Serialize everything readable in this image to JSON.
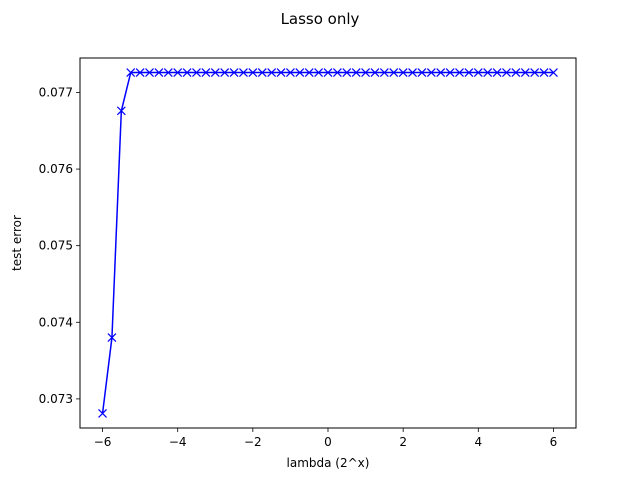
{
  "chart_data": {
    "type": "line",
    "title": "Lasso only",
    "xlabel": "lambda (2^x)",
    "ylabel": "test error",
    "xlim": [
      -6.6,
      6.6
    ],
    "ylim": [
      0.07262,
      0.07745
    ],
    "x_ticks": [
      -6,
      -4,
      -2,
      0,
      2,
      4,
      6
    ],
    "x_tick_labels": [
      "−6",
      "−4",
      "−2",
      "0",
      "2",
      "4",
      "6"
    ],
    "y_ticks": [
      0.073,
      0.074,
      0.075,
      0.076,
      0.077
    ],
    "y_tick_labels": [
      "0.073",
      "0.074",
      "0.075",
      "0.076",
      "0.077"
    ],
    "grid": false,
    "marker": "x",
    "series": [
      {
        "color": "#0000ff",
        "x": [
          -6,
          -5.75,
          -5.5,
          -5.25,
          -5,
          -4.75,
          -4.5,
          -4.25,
          -4,
          -3.75,
          -3.5,
          -3.25,
          -3,
          -2.75,
          -2.5,
          -2.25,
          -2,
          -1.75,
          -1.5,
          -1.25,
          -1,
          -0.75,
          -0.5,
          -0.25,
          0,
          0.25,
          0.5,
          0.75,
          1,
          1.25,
          1.5,
          1.75,
          2,
          2.25,
          2.5,
          2.75,
          3,
          3.25,
          3.5,
          3.75,
          4,
          4.25,
          4.5,
          4.75,
          5,
          5.25,
          5.5,
          5.75,
          6
        ],
        "y": [
          0.07281,
          0.0738,
          0.07676,
          0.07726,
          0.07726,
          0.07726,
          0.07726,
          0.07726,
          0.07726,
          0.07726,
          0.07726,
          0.07726,
          0.07726,
          0.07726,
          0.07726,
          0.07726,
          0.07726,
          0.07726,
          0.07726,
          0.07726,
          0.07726,
          0.07726,
          0.07726,
          0.07726,
          0.07726,
          0.07726,
          0.07726,
          0.07726,
          0.07726,
          0.07726,
          0.07726,
          0.07726,
          0.07726,
          0.07726,
          0.07726,
          0.07726,
          0.07726,
          0.07726,
          0.07726,
          0.07726,
          0.07726,
          0.07726,
          0.07726,
          0.07726,
          0.07726,
          0.07726,
          0.07726,
          0.07726,
          0.07726
        ]
      }
    ]
  }
}
